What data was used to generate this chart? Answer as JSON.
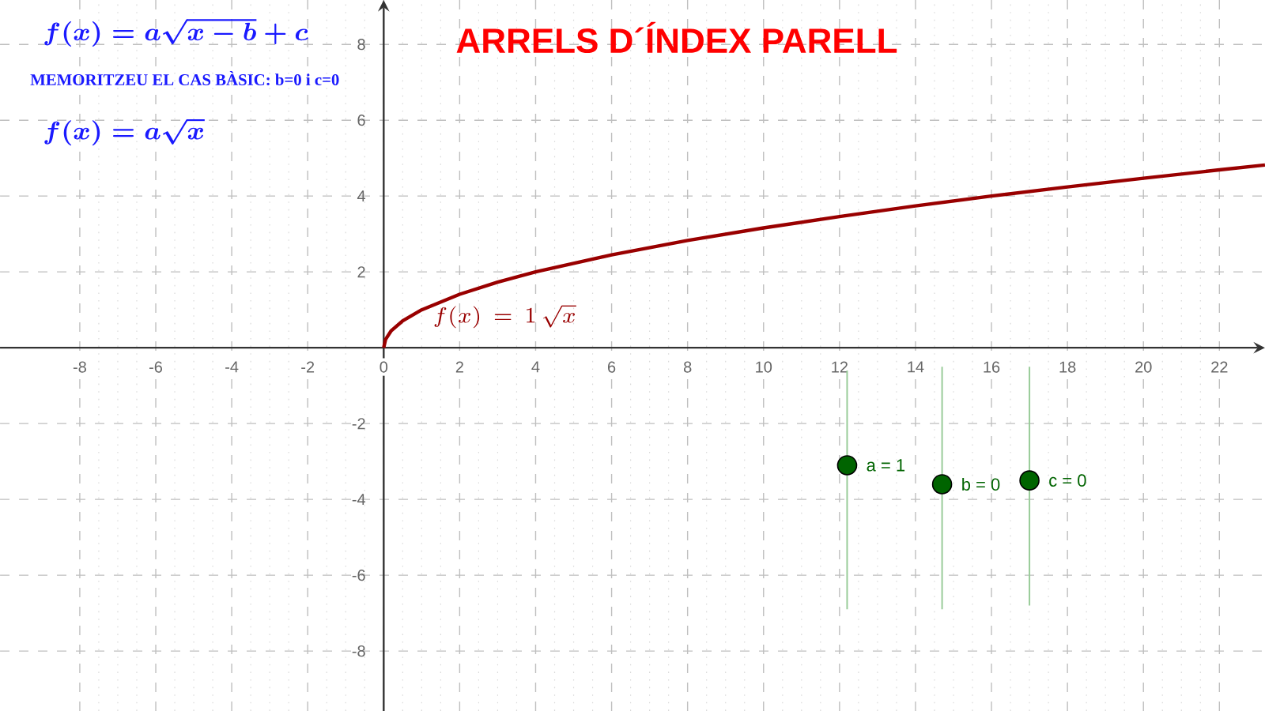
{
  "chart_data": {
    "type": "line",
    "title": "ARRELS D´ÍNDEX PARELL",
    "xlim": [
      -10.1,
      23.2
    ],
    "ylim": [
      -9.58,
      9.17
    ],
    "xticks": [
      -8,
      -6,
      -4,
      -2,
      0,
      2,
      4,
      6,
      8,
      10,
      12,
      14,
      16,
      18,
      20,
      22
    ],
    "yticks": [
      -8,
      -6,
      -4,
      -2,
      2,
      4,
      6,
      8
    ],
    "grid": true,
    "series": [
      {
        "type": "line",
        "color": "#990000",
        "x": [
          0,
          0.05,
          0.2,
          0.5,
          1,
          2,
          3,
          4,
          6,
          8,
          10,
          12,
          14,
          16,
          18,
          20,
          22,
          23.2
        ],
        "values": [
          0,
          0.22,
          0.45,
          0.71,
          1,
          1.41,
          1.73,
          2,
          2.45,
          2.83,
          3.16,
          3.46,
          3.74,
          4,
          4.24,
          4.47,
          4.69,
          4.82
        ]
      },
      {
        "type": "line",
        "color": "#99cc99",
        "x": [
          12.2,
          12.2
        ],
        "values": [
          -0.6,
          -6.9
        ]
      },
      {
        "type": "line",
        "color": "#99cc99",
        "x": [
          14.7,
          14.7
        ],
        "values": [
          -0.5,
          -6.9
        ]
      },
      {
        "type": "line",
        "color": "#99cc99",
        "x": [
          17.0,
          17.0
        ],
        "values": [
          -0.5,
          -6.8
        ]
      },
      {
        "type": "scatter",
        "marker": "circle",
        "color": "#006400",
        "x": [
          12.2,
          14.7,
          17.0
        ],
        "values": [
          -3.1,
          -3.6,
          -3.5
        ]
      }
    ],
    "annotations": [
      "f(x) = a\\sqrt{x-b}+c",
      "MEMORITZEU EL CAS BÀSIC: b=0 i c=0",
      "f(x) = a\\sqrt{x}",
      {
        "text": "f(x) \\,=\\, 1\\,\\sqrt{x}",
        "x": 1,
        "y": 0.83
      },
      {
        "text": "a = 1",
        "x": 12.2,
        "y": -3.1
      },
      {
        "text": "b = 0",
        "x": 14.7,
        "y": -3.6
      },
      {
        "text": "c = 0",
        "x": 17.0,
        "y": -3.5
      }
    ]
  }
}
